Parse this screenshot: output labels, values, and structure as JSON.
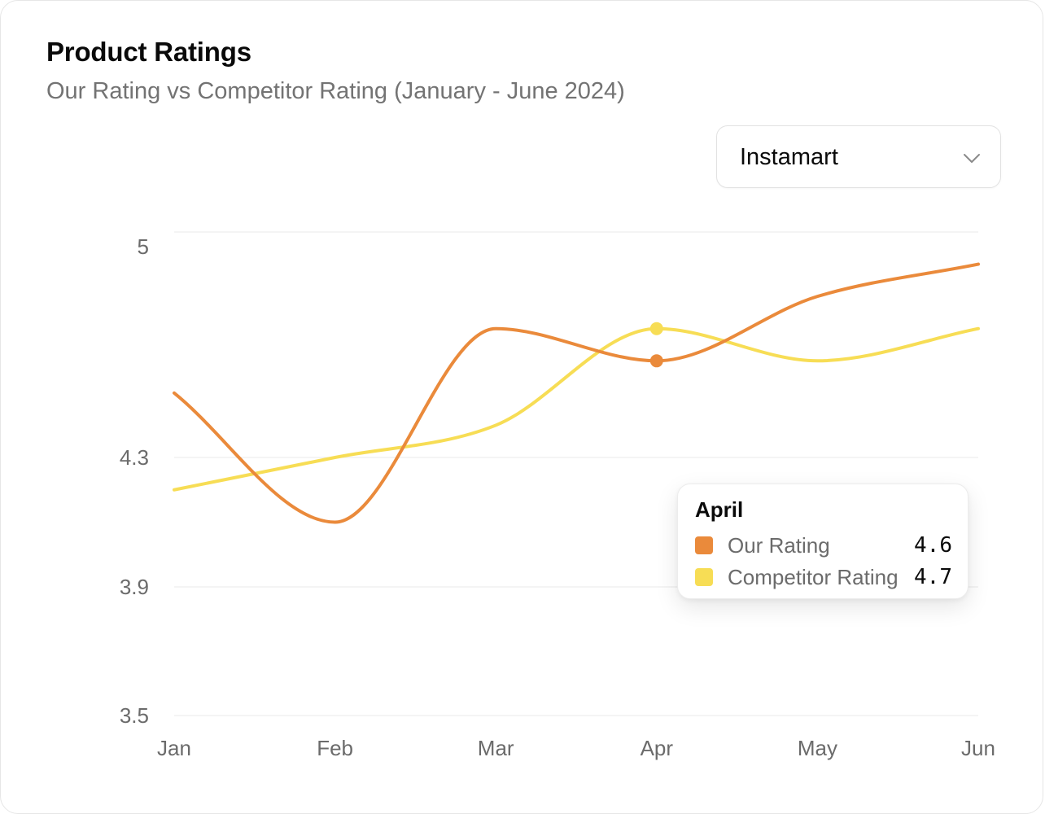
{
  "header": {
    "title": "Product Ratings",
    "subtitle": "Our Rating vs Competitor Rating (January - June 2024)"
  },
  "selector": {
    "value": "Instamart",
    "icon": "chevron-down-icon"
  },
  "tooltip": {
    "title": "April",
    "rows": [
      {
        "label": "Our Rating",
        "value": "4.6"
      },
      {
        "label": "Competitor Rating",
        "value": "4.7"
      }
    ]
  },
  "colors": {
    "our": "#ea8a3b",
    "competitor": "#f7dd55",
    "grid": "#ededed",
    "axis_text": "#6b6b6b"
  },
  "chart_data": {
    "type": "line",
    "title": "Product Ratings",
    "subtitle": "Our Rating vs Competitor Rating (January - June 2024)",
    "categories": [
      "Jan",
      "Feb",
      "Mar",
      "Apr",
      "May",
      "Jun"
    ],
    "y_ticks": [
      5,
      4.3,
      3.9,
      3.5
    ],
    "y_tick_labels": [
      "5",
      "4.3",
      "3.9",
      "3.5"
    ],
    "ylim": [
      3.5,
      5
    ],
    "grid": true,
    "highlight_index": 3,
    "series": [
      {
        "name": "Our Rating",
        "color": "#ea8a3b",
        "values": [
          4.5,
          4.1,
          4.7,
          4.6,
          4.8,
          4.9
        ]
      },
      {
        "name": "Competitor Rating",
        "color": "#f7dd55",
        "values": [
          4.2,
          4.3,
          4.4,
          4.7,
          4.6,
          4.7
        ]
      }
    ]
  }
}
